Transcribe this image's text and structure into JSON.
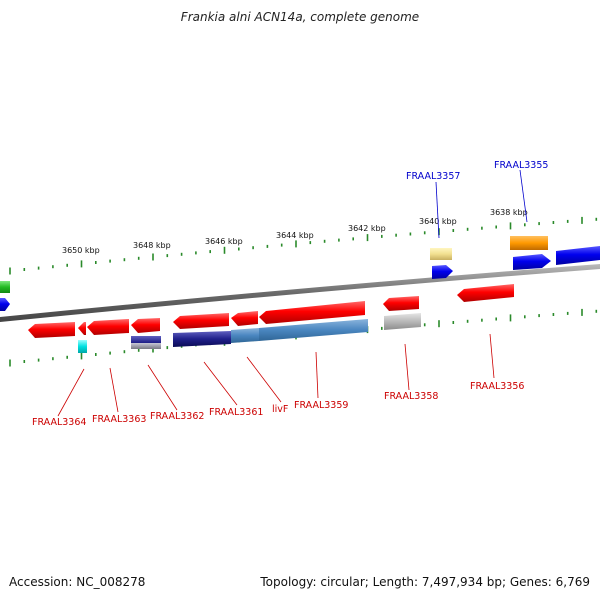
{
  "title": "Frankia alni ACN14a, complete genome",
  "footer": {
    "accession": "Accession: NC_008278",
    "topology": "Topology: circular; Length: 7,497,934 bp; Genes: 6,769"
  },
  "colors": {
    "forward_label": "#0000cc",
    "reverse_label": "#cc0000",
    "backbone": "#777777",
    "tick": "#2a8a2a"
  },
  "kbp_ticks": [
    "3650 kbp",
    "3648 kbp",
    "3646 kbp",
    "3644 kbp",
    "3642 kbp",
    "3640 kbp",
    "3638 kbp"
  ],
  "gene_labels": {
    "forward": [
      "FRAAL3357",
      "FRAAL3355"
    ],
    "reverse": [
      "FRAAL3364",
      "FRAAL3363",
      "FRAAL3362",
      "FRAAL3361",
      "livF",
      "FRAAL3359",
      "FRAAL3358",
      "FRAAL3356"
    ]
  }
}
